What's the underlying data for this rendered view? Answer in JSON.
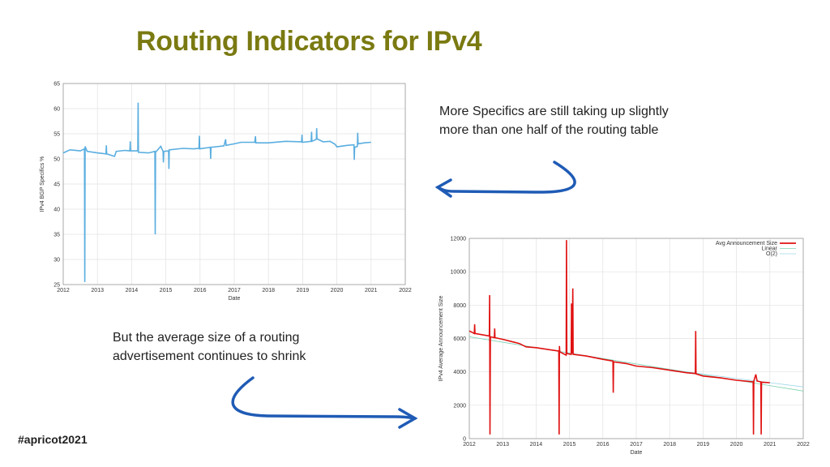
{
  "slide": {
    "title": "Routing Indicators for IPv4",
    "note_top": [
      "More Specifics are still taking up slightly",
      "more than one half of the routing table"
    ],
    "note_bottom": [
      "But the average size of a routing",
      "advertisement continues to shrink"
    ],
    "hashtag": "#apricot2021",
    "arrow_color": "#1f5bb5",
    "title_color": "#7a7a12"
  },
  "chart_data": [
    {
      "type": "line",
      "xlabel": "Date",
      "ylabel": "IPv4 BGP Specifics %",
      "xlim": [
        2012,
        2022
      ],
      "ylim": [
        25,
        65
      ],
      "xticks": [
        "2012",
        "2013",
        "2014",
        "2015",
        "2016",
        "2017",
        "2018",
        "2019",
        "2020",
        "2021",
        "2022"
      ],
      "yticks": [
        "25",
        "30",
        "35",
        "40",
        "45",
        "50",
        "55",
        "60",
        "65"
      ],
      "grid": true,
      "color": "#5aaee0",
      "series": [
        {
          "x": [
            2012.0,
            2012.2,
            2012.5,
            2012.62,
            2012.63,
            2012.64,
            2012.7,
            2013.0,
            2013.25,
            2013.26,
            2013.27,
            2013.5,
            2013.55,
            2013.8,
            2013.95,
            2013.96,
            2013.97,
            2014.18,
            2014.19,
            2014.2,
            2014.5,
            2014.68,
            2014.69,
            2014.7,
            2014.85,
            2014.92,
            2014.93,
            2014.94,
            2015.08,
            2015.09,
            2015.1,
            2015.5,
            2015.8,
            2015.97,
            2015.98,
            2015.99,
            2016.3,
            2016.31,
            2016.32,
            2016.7,
            2016.75,
            2016.76,
            2017.0,
            2017.2,
            2017.6,
            2017.62,
            2017.63,
            2018.0,
            2018.5,
            2018.97,
            2018.98,
            2018.99,
            2019.25,
            2019.26,
            2019.27,
            2019.4,
            2019.41,
            2019.42,
            2019.6,
            2019.8,
            2019.95,
            2020.0,
            2020.3,
            2020.5,
            2020.51,
            2020.52,
            2020.6,
            2020.61,
            2020.62,
            2020.8,
            2021.0
          ],
          "y": [
            51.2,
            51.8,
            51.6,
            52.0,
            25.5,
            52.5,
            51.5,
            51.2,
            51.0,
            52.7,
            51.0,
            50.5,
            51.5,
            51.7,
            51.6,
            53.5,
            51.6,
            51.6,
            61.2,
            51.3,
            51.2,
            51.5,
            35.0,
            51.3,
            52.5,
            51.5,
            49.3,
            51.5,
            51.6,
            48.0,
            51.8,
            52.1,
            52.0,
            52.1,
            54.6,
            52.0,
            52.3,
            50.0,
            52.3,
            52.6,
            53.9,
            52.7,
            53.0,
            53.3,
            53.3,
            54.5,
            53.2,
            53.2,
            53.5,
            53.4,
            54.8,
            53.3,
            53.5,
            55.4,
            53.5,
            53.9,
            56.1,
            54.0,
            53.4,
            53.5,
            52.9,
            52.4,
            52.7,
            52.8,
            49.8,
            52.3,
            52.5,
            55.2,
            53.0,
            53.2,
            53.3
          ]
        }
      ]
    },
    {
      "type": "line",
      "xlabel": "Date",
      "ylabel": "IPv4 Average Announcement Size",
      "xlim": [
        2012,
        2022
      ],
      "ylim": [
        0,
        12000
      ],
      "xticks": [
        "2012",
        "2013",
        "2014",
        "2015",
        "2016",
        "2017",
        "2018",
        "2019",
        "2020",
        "2021",
        "2022"
      ],
      "yticks": [
        "0",
        "2000",
        "4000",
        "6000",
        "8000",
        "10000",
        "12000"
      ],
      "grid": true,
      "legend": "top-right",
      "series": [
        {
          "name": "Avg Announcement Size",
          "color": "#e01010",
          "x": [
            2012.0,
            2012.15,
            2012.16,
            2012.17,
            2012.6,
            2012.61,
            2012.62,
            2012.63,
            2012.75,
            2012.76,
            2012.77,
            2013.0,
            2013.5,
            2013.7,
            2014.0,
            2014.5,
            2014.68,
            2014.69,
            2014.7,
            2014.71,
            2014.9,
            2014.91,
            2014.92,
            2015.05,
            2015.06,
            2015.08,
            2015.1,
            2015.11,
            2015.5,
            2016.0,
            2016.3,
            2016.31,
            2016.32,
            2016.7,
            2017.0,
            2017.5,
            2018.0,
            2018.5,
            2018.77,
            2018.78,
            2018.79,
            2019.0,
            2019.5,
            2020.0,
            2020.5,
            2020.51,
            2020.52,
            2020.58,
            2020.62,
            2020.73,
            2020.74,
            2020.75,
            2021.0
          ],
          "y": [
            6450,
            6300,
            6850,
            6300,
            6150,
            8600,
            250,
            6100,
            6050,
            6600,
            6050,
            5950,
            5700,
            5500,
            5450,
            5300,
            5250,
            250,
            5550,
            5200,
            5000,
            11900,
            5100,
            5050,
            8100,
            5100,
            9000,
            5050,
            4950,
            4750,
            4650,
            2750,
            4600,
            4500,
            4350,
            4250,
            4100,
            3950,
            3900,
            6450,
            3880,
            3750,
            3650,
            3500,
            3400,
            250,
            3450,
            3850,
            3450,
            3400,
            250,
            3380,
            3350
          ]
        },
        {
          "name": "Linear",
          "color": "#7fd3b0",
          "x": [
            2012,
            2022
          ],
          "y": [
            6100,
            2850
          ]
        },
        {
          "name": "O(2)",
          "color": "#a0d8e8",
          "x": [
            2012,
            2014,
            2016,
            2018,
            2020,
            2022
          ],
          "y": [
            6100,
            5450,
            4800,
            4150,
            3600,
            3100
          ]
        }
      ]
    }
  ]
}
